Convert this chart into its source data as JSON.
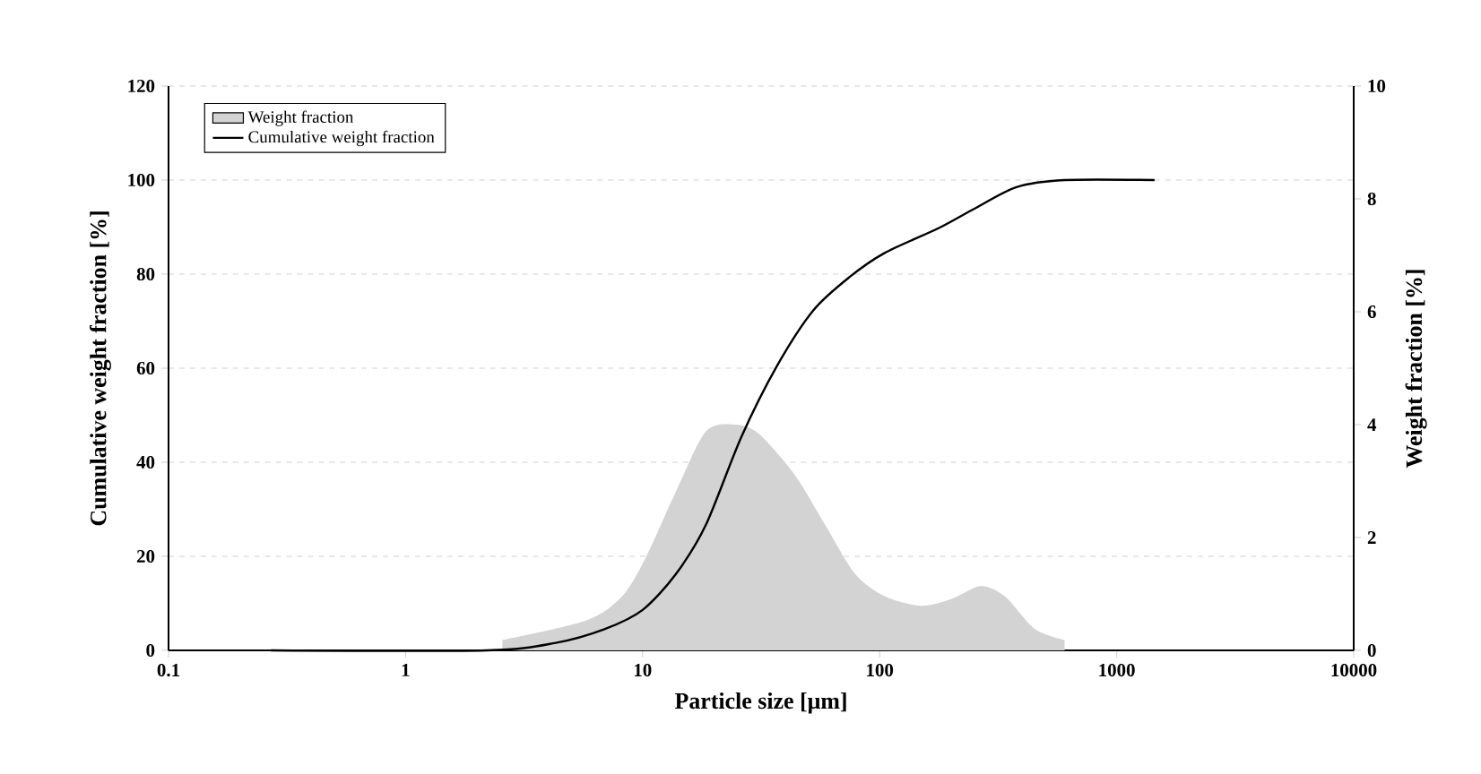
{
  "chart_data": {
    "type": "line",
    "xlabel": "Particle size [μm]",
    "ylabel": "Cumulative weight fraction [%]",
    "y2label": "Weight fraction [%]",
    "log": "x",
    "grid": "y",
    "legend": "top left",
    "xlim": [
      0.1,
      10000
    ],
    "xticks": [
      0.1,
      1,
      10,
      100,
      1000,
      10000
    ],
    "ylim": [
      0,
      120
    ],
    "yticks": [
      0,
      20,
      40,
      60,
      80,
      100,
      120
    ],
    "y2lim": [
      0,
      10
    ],
    "y2ticks": [
      0,
      2,
      4,
      6,
      8,
      10
    ],
    "series": [
      {
        "name": "Weight fraction",
        "type": "area",
        "axis": "y2",
        "color": "#d3d3d3",
        "x": [
          2.56,
          5.8,
          8.2,
          10.3,
          13.8,
          18.5,
          24.7,
          31.1,
          44,
          59,
          79,
          105,
          149,
          200,
          267,
          337,
          451,
          603
        ],
        "values": [
          0.18,
          0.53,
          0.96,
          1.64,
          2.81,
          3.88,
          4.0,
          3.83,
          3.1,
          2.22,
          1.35,
          0.96,
          0.79,
          0.91,
          1.14,
          0.96,
          0.38,
          0.18
        ]
      },
      {
        "name": "Cumulative weight fraction",
        "color": "#000000",
        "x": [
          0.27,
          2.2,
          4.3,
          6.9,
          10,
          13.8,
          18.5,
          26.1,
          37,
          52.5,
          74.3,
          105,
          178,
          251,
          378,
          603,
          1445
        ],
        "values": [
          0,
          0,
          1.6,
          4.5,
          8.6,
          16.2,
          26.7,
          45.4,
          60.6,
          72.3,
          79.3,
          84.5,
          89.8,
          93.9,
          98.5,
          100,
          100
        ]
      }
    ]
  }
}
